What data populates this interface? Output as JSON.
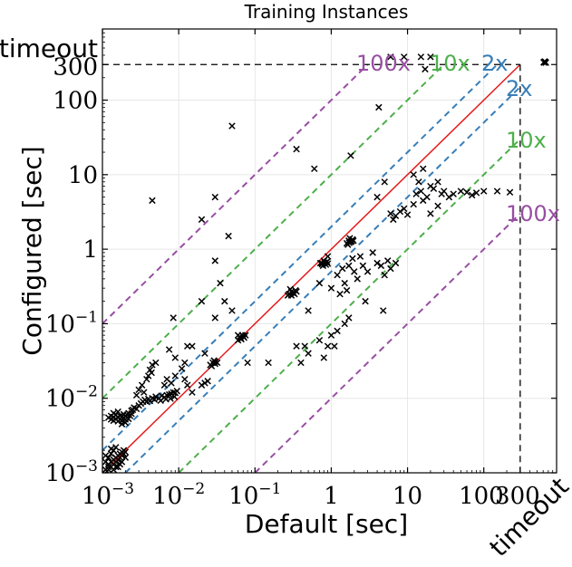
{
  "chart_data": {
    "type": "scatter",
    "title": "Training Instances",
    "xlabel": "Default [sec]",
    "ylabel": "Configured [sec]",
    "xscale": "log",
    "yscale": "log",
    "xlim": [
      0.001,
      900
    ],
    "ylim": [
      0.001,
      900
    ],
    "grid": true,
    "x_ticks": [
      {
        "value": 0.001,
        "label": "10",
        "exp": "−3"
      },
      {
        "value": 0.01,
        "label": "10",
        "exp": "−2"
      },
      {
        "value": 0.1,
        "label": "10",
        "exp": "−1"
      },
      {
        "value": 1,
        "label": "1",
        "exp": ""
      },
      {
        "value": 10,
        "label": "10",
        "exp": ""
      },
      {
        "value": 100,
        "label": "100",
        "exp": ""
      },
      {
        "value": 300,
        "label": "300",
        "exp": ""
      }
    ],
    "y_ticks": [
      {
        "value": 0.001,
        "label": "10",
        "exp": "−3"
      },
      {
        "value": 0.01,
        "label": "10",
        "exp": "−2"
      },
      {
        "value": 0.1,
        "label": "10",
        "exp": "−1"
      },
      {
        "value": 1,
        "label": "1",
        "exp": ""
      },
      {
        "value": 10,
        "label": "10",
        "exp": ""
      },
      {
        "value": 100,
        "label": "100",
        "exp": ""
      },
      {
        "value": 300,
        "label": "300",
        "exp": ""
      }
    ],
    "timeout_label": "timeout",
    "timeout_value": 300,
    "reference_lines": [
      {
        "factor": 1,
        "color": "#e41a1c",
        "dashed": false,
        "label": ""
      },
      {
        "factor": 2,
        "color": "#377eb8",
        "dashed": true,
        "label": "2x"
      },
      {
        "factor": 0.5,
        "color": "#377eb8",
        "dashed": true,
        "label": "2x"
      },
      {
        "factor": 10,
        "color": "#4daf4a",
        "dashed": true,
        "label": "10x"
      },
      {
        "factor": 0.1,
        "color": "#4daf4a",
        "dashed": true,
        "label": "10x"
      },
      {
        "factor": 100,
        "color": "#984ea3",
        "dashed": true,
        "label": "100x"
      },
      {
        "factor": 0.01,
        "color": "#984ea3",
        "dashed": true,
        "label": "100x"
      }
    ],
    "marker": "x",
    "marker_color": "#000000",
    "points": [
      [
        0.0011,
        0.0011
      ],
      [
        0.0012,
        0.0012
      ],
      [
        0.0012,
        0.0013
      ],
      [
        0.0013,
        0.0012
      ],
      [
        0.0013,
        0.0014
      ],
      [
        0.0014,
        0.0013
      ],
      [
        0.0014,
        0.0015
      ],
      [
        0.0015,
        0.0014
      ],
      [
        0.0015,
        0.0016
      ],
      [
        0.0016,
        0.0015
      ],
      [
        0.0016,
        0.0017
      ],
      [
        0.0017,
        0.0016
      ],
      [
        0.0017,
        0.0018
      ],
      [
        0.0018,
        0.0017
      ],
      [
        0.0018,
        0.0019
      ],
      [
        0.0019,
        0.0018
      ],
      [
        0.0019,
        0.002
      ],
      [
        0.002,
        0.0019
      ],
      [
        0.0011,
        0.0014
      ],
      [
        0.0012,
        0.0016
      ],
      [
        0.0013,
        0.0018
      ],
      [
        0.0014,
        0.002
      ],
      [
        0.0015,
        0.0012
      ],
      [
        0.0017,
        0.0013
      ],
      [
        0.0012,
        0.0011
      ],
      [
        0.0014,
        0.0011
      ],
      [
        0.0016,
        0.0012
      ],
      [
        0.0018,
        0.0014
      ],
      [
        0.002,
        0.0016
      ],
      [
        0.0011,
        0.0017
      ],
      [
        0.0013,
        0.0021
      ],
      [
        0.0015,
        0.0022
      ],
      [
        0.0012,
        0.0055
      ],
      [
        0.0013,
        0.0052
      ],
      [
        0.0013,
        0.0058
      ],
      [
        0.0014,
        0.005
      ],
      [
        0.0014,
        0.0056
      ],
      [
        0.0015,
        0.0053
      ],
      [
        0.0015,
        0.006
      ],
      [
        0.0016,
        0.0049
      ],
      [
        0.0016,
        0.0055
      ],
      [
        0.0017,
        0.0052
      ],
      [
        0.0017,
        0.0058
      ],
      [
        0.0018,
        0.005
      ],
      [
        0.0018,
        0.0056
      ],
      [
        0.0019,
        0.0054
      ],
      [
        0.0019,
        0.0061
      ],
      [
        0.002,
        0.0052
      ],
      [
        0.002,
        0.0058
      ],
      [
        0.0021,
        0.0055
      ],
      [
        0.0021,
        0.006
      ],
      [
        0.0022,
        0.0053
      ],
      [
        0.0022,
        0.0063
      ],
      [
        0.0014,
        0.0063
      ],
      [
        0.0016,
        0.0066
      ],
      [
        0.0018,
        0.0045
      ],
      [
        0.002,
        0.0047
      ],
      [
        0.0023,
        0.0058
      ],
      [
        0.0024,
        0.0062
      ],
      [
        0.0025,
        0.007
      ],
      [
        0.0024,
        0.0068
      ],
      [
        0.0026,
        0.0075
      ],
      [
        0.0028,
        0.0072
      ],
      [
        0.003,
        0.008
      ],
      [
        0.0032,
        0.0085
      ],
      [
        0.0034,
        0.009
      ],
      [
        0.0036,
        0.0095
      ],
      [
        0.0038,
        0.009
      ],
      [
        0.004,
        0.0098
      ],
      [
        0.0042,
        0.0092
      ],
      [
        0.0045,
        0.01
      ],
      [
        0.0048,
        0.0096
      ],
      [
        0.005,
        0.0105
      ],
      [
        0.0055,
        0.01
      ],
      [
        0.006,
        0.0108
      ],
      [
        0.0065,
        0.0103
      ],
      [
        0.007,
        0.011
      ],
      [
        0.0075,
        0.0112
      ],
      [
        0.008,
        0.0115
      ],
      [
        0.0085,
        0.012
      ],
      [
        0.009,
        0.0118
      ],
      [
        0.0095,
        0.0125
      ],
      [
        0.0058,
        0.0093
      ],
      [
        0.0068,
        0.0097
      ],
      [
        0.0078,
        0.0099
      ],
      [
        0.0088,
        0.0105
      ],
      [
        0.003,
        0.013
      ],
      [
        0.0033,
        0.015
      ],
      [
        0.0035,
        0.012
      ],
      [
        0.0038,
        0.018
      ],
      [
        0.004,
        0.02
      ],
      [
        0.0042,
        0.024
      ],
      [
        0.0045,
        0.028
      ],
      [
        0.005,
        0.03
      ],
      [
        0.0028,
        0.011
      ],
      [
        0.0044,
        0.022
      ],
      [
        0.0065,
        0.015
      ],
      [
        0.007,
        0.018
      ],
      [
        0.008,
        0.016
      ],
      [
        0.009,
        0.02
      ],
      [
        0.012,
        0.018
      ],
      [
        0.013,
        0.015
      ],
      [
        0.015,
        0.012
      ],
      [
        0.011,
        0.025
      ],
      [
        0.009,
        0.035
      ],
      [
        0.0075,
        0.045
      ],
      [
        0.0085,
        0.12
      ],
      [
        0.013,
        0.05
      ],
      [
        0.02,
        0.015
      ],
      [
        0.022,
        0.016
      ],
      [
        0.024,
        0.017
      ],
      [
        0.026,
        0.028
      ],
      [
        0.028,
        0.03
      ],
      [
        0.03,
        0.029
      ],
      [
        0.03,
        0.031
      ],
      [
        0.032,
        0.03
      ],
      [
        0.027,
        0.027
      ],
      [
        0.029,
        0.032
      ],
      [
        0.06,
        0.06
      ],
      [
        0.065,
        0.064
      ],
      [
        0.07,
        0.068
      ],
      [
        0.068,
        0.07
      ],
      [
        0.072,
        0.065
      ],
      [
        0.066,
        0.062
      ],
      [
        0.063,
        0.067
      ],
      [
        0.075,
        0.07
      ],
      [
        0.28,
        0.25
      ],
      [
        0.3,
        0.27
      ],
      [
        0.32,
        0.26
      ],
      [
        0.3,
        0.24
      ],
      [
        0.34,
        0.28
      ],
      [
        0.29,
        0.29
      ],
      [
        0.33,
        0.25
      ],
      [
        0.31,
        0.26
      ],
      [
        0.27,
        0.24
      ],
      [
        0.35,
        0.27
      ],
      [
        0.75,
        0.65
      ],
      [
        0.8,
        0.7
      ],
      [
        0.85,
        0.62
      ],
      [
        0.78,
        0.6
      ],
      [
        0.88,
        0.68
      ],
      [
        0.82,
        0.66
      ],
      [
        0.76,
        0.63
      ],
      [
        0.9,
        0.64
      ],
      [
        0.72,
        0.65
      ],
      [
        1.6,
        1.2
      ],
      [
        1.7,
        1.3
      ],
      [
        1.8,
        1.25
      ],
      [
        1.75,
        1.4
      ],
      [
        1.65,
        1.15
      ],
      [
        1.9,
        1.35
      ],
      [
        1.85,
        1.28
      ],
      [
        1.72,
        1.22
      ],
      [
        1.95,
        1.3
      ],
      [
        0.0045,
        4.5
      ],
      [
        0.02,
        2.5
      ],
      [
        0.03,
        5
      ],
      [
        0.03,
        0.7
      ],
      [
        0.045,
        1.5
      ],
      [
        0.05,
        45
      ],
      [
        0.035,
        0.35
      ],
      [
        0.04,
        0.2
      ],
      [
        0.06,
        0.07
      ],
      [
        0.08,
        0.03
      ],
      [
        0.03,
        0.12
      ],
      [
        0.05,
        0.15
      ],
      [
        0.02,
        0.2
      ],
      [
        0.015,
        0.05
      ],
      [
        0.022,
        0.04
      ],
      [
        0.012,
        0.03
      ],
      [
        0.35,
        22
      ],
      [
        0.6,
        12
      ],
      [
        1.8,
        18
      ],
      [
        4.2,
        80
      ],
      [
        0.5,
        0.15
      ],
      [
        0.7,
        0.35
      ],
      [
        0.9,
        0.8
      ],
      [
        1.0,
        0.3
      ],
      [
        1.2,
        0.45
      ],
      [
        1.4,
        0.55
      ],
      [
        1.3,
        0.25
      ],
      [
        1.5,
        0.35
      ],
      [
        1.6,
        0.28
      ],
      [
        2.0,
        0.5
      ],
      [
        2.2,
        0.4
      ],
      [
        1.7,
        0.6
      ],
      [
        1.9,
        0.75
      ],
      [
        2.4,
        0.8
      ],
      [
        2.6,
        0.6
      ],
      [
        3,
        0.5
      ],
      [
        3.5,
        0.9
      ],
      [
        4,
        0.65
      ],
      [
        4.5,
        0.6
      ],
      [
        5,
        0.45
      ],
      [
        5.5,
        0.7
      ],
      [
        6,
        0.55
      ],
      [
        7,
        0.65
      ],
      [
        4.8,
        0.15
      ],
      [
        2.8,
        0.2
      ],
      [
        0.4,
        0.03
      ],
      [
        0.5,
        0.04
      ],
      [
        0.45,
        0.05
      ],
      [
        0.8,
        0.035
      ],
      [
        1.2,
        0.08
      ],
      [
        1.5,
        0.1
      ],
      [
        1.7,
        0.12
      ],
      [
        1.1,
        0.05
      ],
      [
        0.9,
        0.05
      ],
      [
        0.7,
        0.06
      ],
      [
        0.35,
        0.05
      ],
      [
        0.15,
        0.03
      ],
      [
        1.0,
        0.07
      ],
      [
        4,
        5
      ],
      [
        5,
        8
      ],
      [
        6,
        3
      ],
      [
        6.5,
        2.5
      ],
      [
        7,
        2.8
      ],
      [
        8,
        3.2
      ],
      [
        9,
        3.5
      ],
      [
        10,
        2.9
      ],
      [
        12,
        4
      ],
      [
        13,
        5.5
      ],
      [
        14,
        8
      ],
      [
        15,
        6
      ],
      [
        16,
        4.5
      ],
      [
        18,
        5
      ],
      [
        20,
        7
      ],
      [
        22,
        6.5
      ],
      [
        25,
        8
      ],
      [
        28,
        5.5
      ],
      [
        30,
        6
      ],
      [
        35,
        5
      ],
      [
        40,
        5.5
      ],
      [
        50,
        6
      ],
      [
        60,
        5.8
      ],
      [
        70,
        5.3
      ],
      [
        80,
        5.7
      ],
      [
        100,
        6
      ],
      [
        150,
        6
      ],
      [
        220,
        5.8
      ],
      [
        12,
        10
      ],
      [
        16,
        12
      ],
      [
        20,
        3
      ],
      [
        25,
        3.8
      ],
      [
        6,
        380
      ],
      [
        9,
        380
      ],
      [
        15,
        380
      ],
      [
        20,
        380
      ],
      [
        17,
        260
      ]
    ],
    "timeout_cluster": [
      [
        620,
        320
      ],
      [
        630,
        330
      ],
      [
        640,
        325
      ],
      [
        650,
        318
      ],
      [
        610,
        322
      ]
    ]
  }
}
